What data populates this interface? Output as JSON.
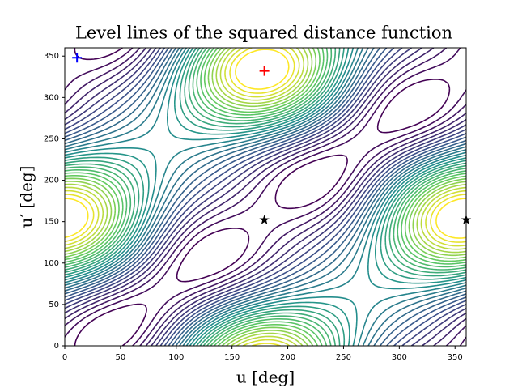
{
  "chart_data": {
    "type": "contour",
    "title": "Level lines of the squared distance function",
    "x_label": "u [deg]",
    "y_label": "u′ [deg]",
    "xlim": [
      0,
      360
    ],
    "ylim": [
      0,
      360
    ],
    "xticks": [
      0,
      50,
      100,
      150,
      200,
      250,
      300,
      350
    ],
    "yticks": [
      0,
      50,
      100,
      150,
      200,
      250,
      300,
      350
    ],
    "markers": [
      {
        "x": 11,
        "y": 348,
        "marker": "+",
        "color": "#0000ff"
      },
      {
        "x": 179,
        "y": 332,
        "marker": "+",
        "color": "#ff0000"
      },
      {
        "x": 179,
        "y": 152,
        "marker": "*",
        "color": "#000000"
      },
      {
        "x": 360,
        "y": 152,
        "marker": "*",
        "color": "#000000"
      }
    ]
  }
}
